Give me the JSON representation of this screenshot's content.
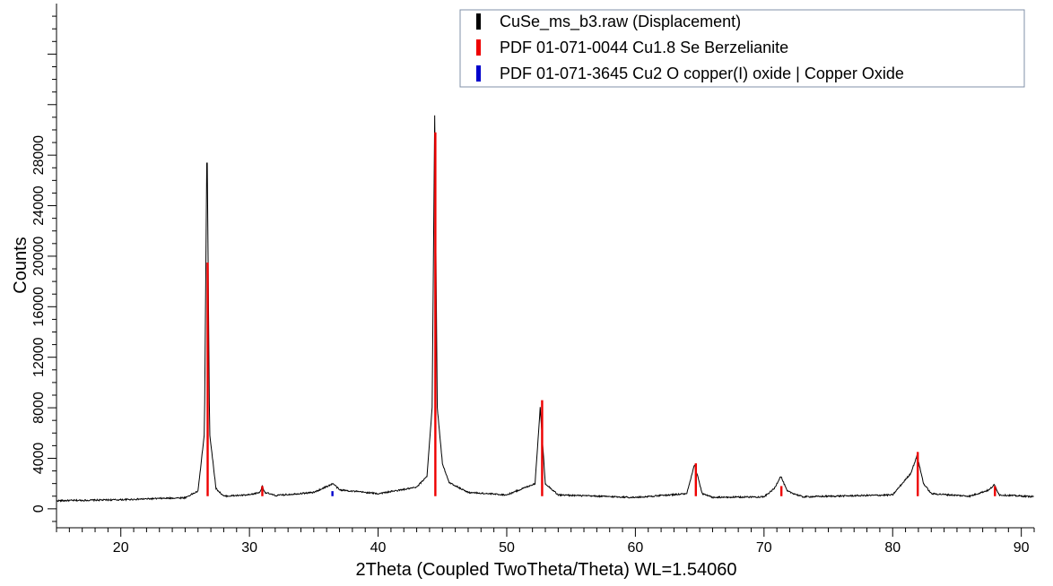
{
  "chart_data": {
    "type": "line",
    "xlabel": "2Theta (Coupled TwoTheta/Theta) WL=1.54060",
    "ylabel": "Counts",
    "xlim": [
      15,
      91
    ],
    "ylim": [
      -1500,
      40000
    ],
    "x_ticks": [
      20,
      30,
      40,
      50,
      60,
      70,
      80,
      90
    ],
    "y_ticks": [
      0,
      4000,
      8000,
      12000,
      16000,
      20000,
      24000,
      28000
    ],
    "grid": false,
    "legend_position": "top-right",
    "series": [
      {
        "name": "CuSe_ms_b3.raw (Displacement)",
        "style": "line",
        "color": "#000000",
        "baseline": 1000,
        "points": [
          [
            15.0,
            640
          ],
          [
            20.0,
            720
          ],
          [
            25.0,
            880
          ],
          [
            26.0,
            1400
          ],
          [
            26.5,
            6000
          ],
          [
            26.7,
            29800
          ],
          [
            26.9,
            6000
          ],
          [
            27.4,
            1600
          ],
          [
            28.0,
            1000
          ],
          [
            30.0,
            1100
          ],
          [
            30.8,
            1300
          ],
          [
            31.0,
            1800
          ],
          [
            31.2,
            1300
          ],
          [
            32.0,
            1050
          ],
          [
            35.0,
            1300
          ],
          [
            36.3,
            1900
          ],
          [
            36.5,
            2000
          ],
          [
            37.0,
            1500
          ],
          [
            38.0,
            1400
          ],
          [
            40.0,
            1200
          ],
          [
            43.0,
            1700
          ],
          [
            43.8,
            2600
          ],
          [
            44.2,
            8000
          ],
          [
            44.4,
            31200
          ],
          [
            44.6,
            8000
          ],
          [
            45.0,
            3600
          ],
          [
            45.5,
            2100
          ],
          [
            47.0,
            1300
          ],
          [
            50.0,
            1100
          ],
          [
            52.2,
            2000
          ],
          [
            52.6,
            8000
          ],
          [
            53.0,
            2000
          ],
          [
            54.0,
            1100
          ],
          [
            60.0,
            900
          ],
          [
            64.0,
            1200
          ],
          [
            64.6,
            3500
          ],
          [
            65.2,
            1200
          ],
          [
            66.0,
            900
          ],
          [
            70.0,
            950
          ],
          [
            70.8,
            1600
          ],
          [
            71.3,
            2600
          ],
          [
            71.8,
            1400
          ],
          [
            73.0,
            950
          ],
          [
            80.0,
            1100
          ],
          [
            81.4,
            2800
          ],
          [
            81.9,
            4200
          ],
          [
            82.4,
            2000
          ],
          [
            83.0,
            1200
          ],
          [
            86.0,
            1000
          ],
          [
            87.5,
            1500
          ],
          [
            87.9,
            1900
          ],
          [
            88.3,
            1100
          ],
          [
            91.0,
            960
          ]
        ]
      },
      {
        "name": "PDF 01-071-0044 Cu1.8 Se Berzelianite",
        "style": "sticks",
        "color": "#ee0000",
        "sticks": [
          [
            26.75,
            19500
          ],
          [
            31.0,
            1800
          ],
          [
            44.45,
            29800
          ],
          [
            52.75,
            8600
          ],
          [
            64.7,
            3600
          ],
          [
            71.35,
            1800
          ],
          [
            81.95,
            4500
          ],
          [
            87.95,
            1800
          ]
        ]
      },
      {
        "name": "PDF 01-071-3645 Cu2 O copper(I) oxide | Copper Oxide",
        "style": "sticks",
        "color": "#0000cc",
        "sticks": [
          [
            36.45,
            1400
          ]
        ]
      }
    ]
  }
}
